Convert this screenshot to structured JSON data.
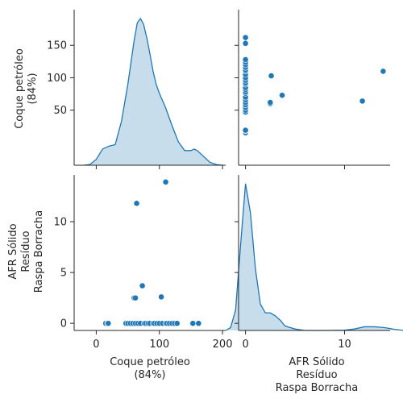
{
  "chart_data": {
    "type": "scatter",
    "kind": "pairplot",
    "variables": [
      "Coque petróleo\n(84%)",
      "AFR Sólido\nResíduo\nRaspa Borracha"
    ],
    "color": "#1f77b4",
    "kde_fill_opacity": 0.25,
    "axis_ranges": {
      "coque": [
        -35,
        205
      ],
      "afr": [
        -0.7,
        14.6
      ]
    },
    "diag_ylim": {
      "coque": [
        0,
        1
      ],
      "afr": [
        0,
        1
      ]
    },
    "x_ticks": {
      "coque": [
        0,
        100,
        200
      ],
      "afr": [
        0,
        10
      ]
    },
    "x_tick_labels": {
      "coque": [
        "0",
        "100",
        "200"
      ],
      "afr": [
        "0",
        "10"
      ]
    },
    "y_ticks": {
      "coque": [
        50,
        100,
        150
      ],
      "afr": [
        0,
        5,
        10
      ]
    },
    "y_tick_labels": {
      "coque": [
        "50",
        "100",
        "150"
      ],
      "afr": [
        "0",
        "5",
        "10"
      ]
    },
    "points": {
      "coque": [
        15,
        18,
        19,
        47,
        50,
        54,
        58,
        60,
        62,
        62,
        64,
        66,
        70,
        73,
        76,
        78,
        82,
        85,
        90,
        92,
        96,
        100,
        103,
        105,
        110,
        110,
        112,
        116,
        120,
        124,
        128,
        153,
        162
      ],
      "afr": [
        0,
        0,
        0,
        0,
        0,
        0,
        0,
        2.5,
        0,
        2.5,
        11.8,
        0,
        0,
        3.7,
        0,
        0,
        0,
        0,
        0,
        0,
        0,
        0,
        2.6,
        0,
        13.9,
        0,
        0,
        0,
        0,
        0,
        0,
        0,
        0
      ]
    },
    "kde": {
      "coque": {
        "x": [
          -20,
          -10,
          0,
          10,
          20,
          30,
          40,
          50,
          60,
          65,
          70,
          75,
          80,
          85,
          90,
          95,
          100,
          105,
          110,
          120,
          130,
          140,
          150,
          155,
          160,
          170,
          180,
          190,
          200
        ],
        "y": [
          0.0,
          0.005,
          0.04,
          0.11,
          0.13,
          0.14,
          0.3,
          0.55,
          0.85,
          0.97,
          1.0,
          0.96,
          0.87,
          0.76,
          0.64,
          0.55,
          0.49,
          0.44,
          0.39,
          0.27,
          0.16,
          0.1,
          0.1,
          0.11,
          0.1,
          0.06,
          0.02,
          0.005,
          0.0
        ]
      },
      "afr": {
        "x": [
          -2,
          -1.5,
          -1,
          -0.5,
          0,
          0.5,
          1,
          1.5,
          2,
          2.5,
          3,
          3.5,
          4,
          5,
          6,
          8,
          10,
          11,
          12,
          13,
          14,
          15,
          16
        ],
        "y": [
          0.0,
          0.02,
          0.14,
          0.58,
          1.0,
          0.8,
          0.42,
          0.18,
          0.12,
          0.12,
          0.1,
          0.07,
          0.03,
          0.01,
          0.0,
          0.0,
          0.002,
          0.01,
          0.025,
          0.025,
          0.02,
          0.008,
          0.0
        ]
      }
    }
  }
}
